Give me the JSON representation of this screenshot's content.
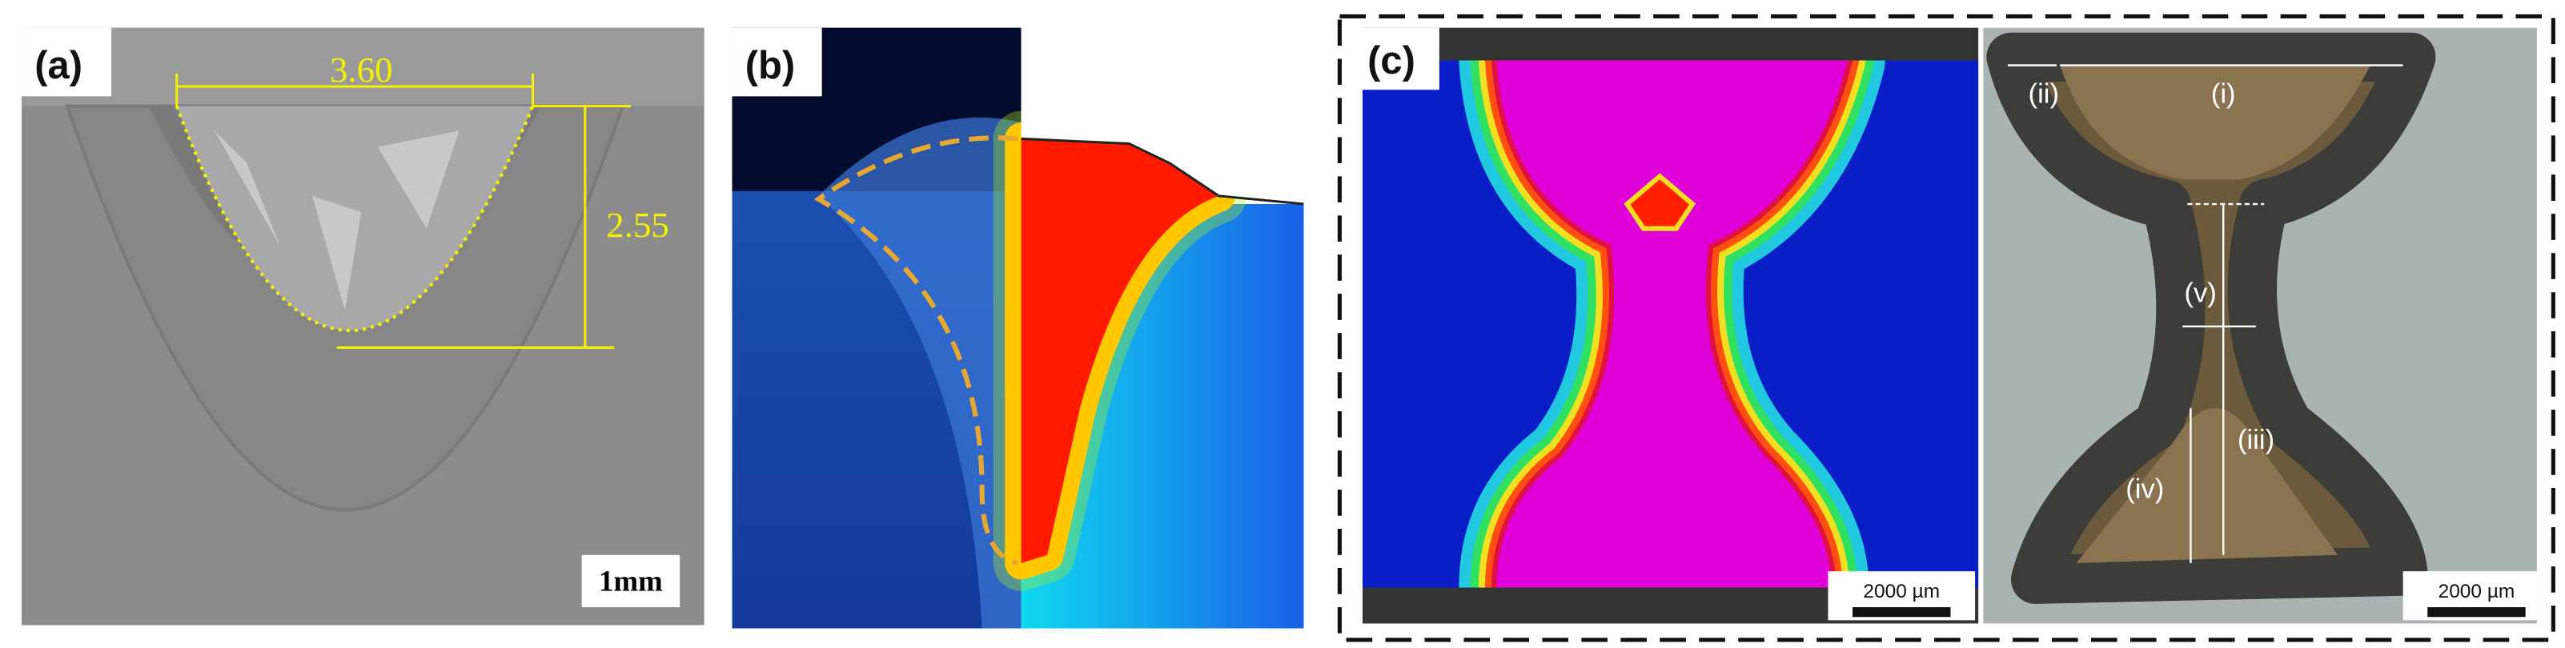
{
  "panels": [
    {
      "label": "(a)",
      "width_label": "3.60",
      "depth_label": "2.55",
      "scale_bar": "1mm"
    },
    {
      "label": "(b)"
    },
    {
      "label": "(c)",
      "scale_bars": [
        "2000 µm",
        "2000 µm"
      ],
      "zones": [
        "(i)",
        "(ii)",
        "(iii)",
        "(iv)",
        "(v)"
      ]
    }
  ]
}
